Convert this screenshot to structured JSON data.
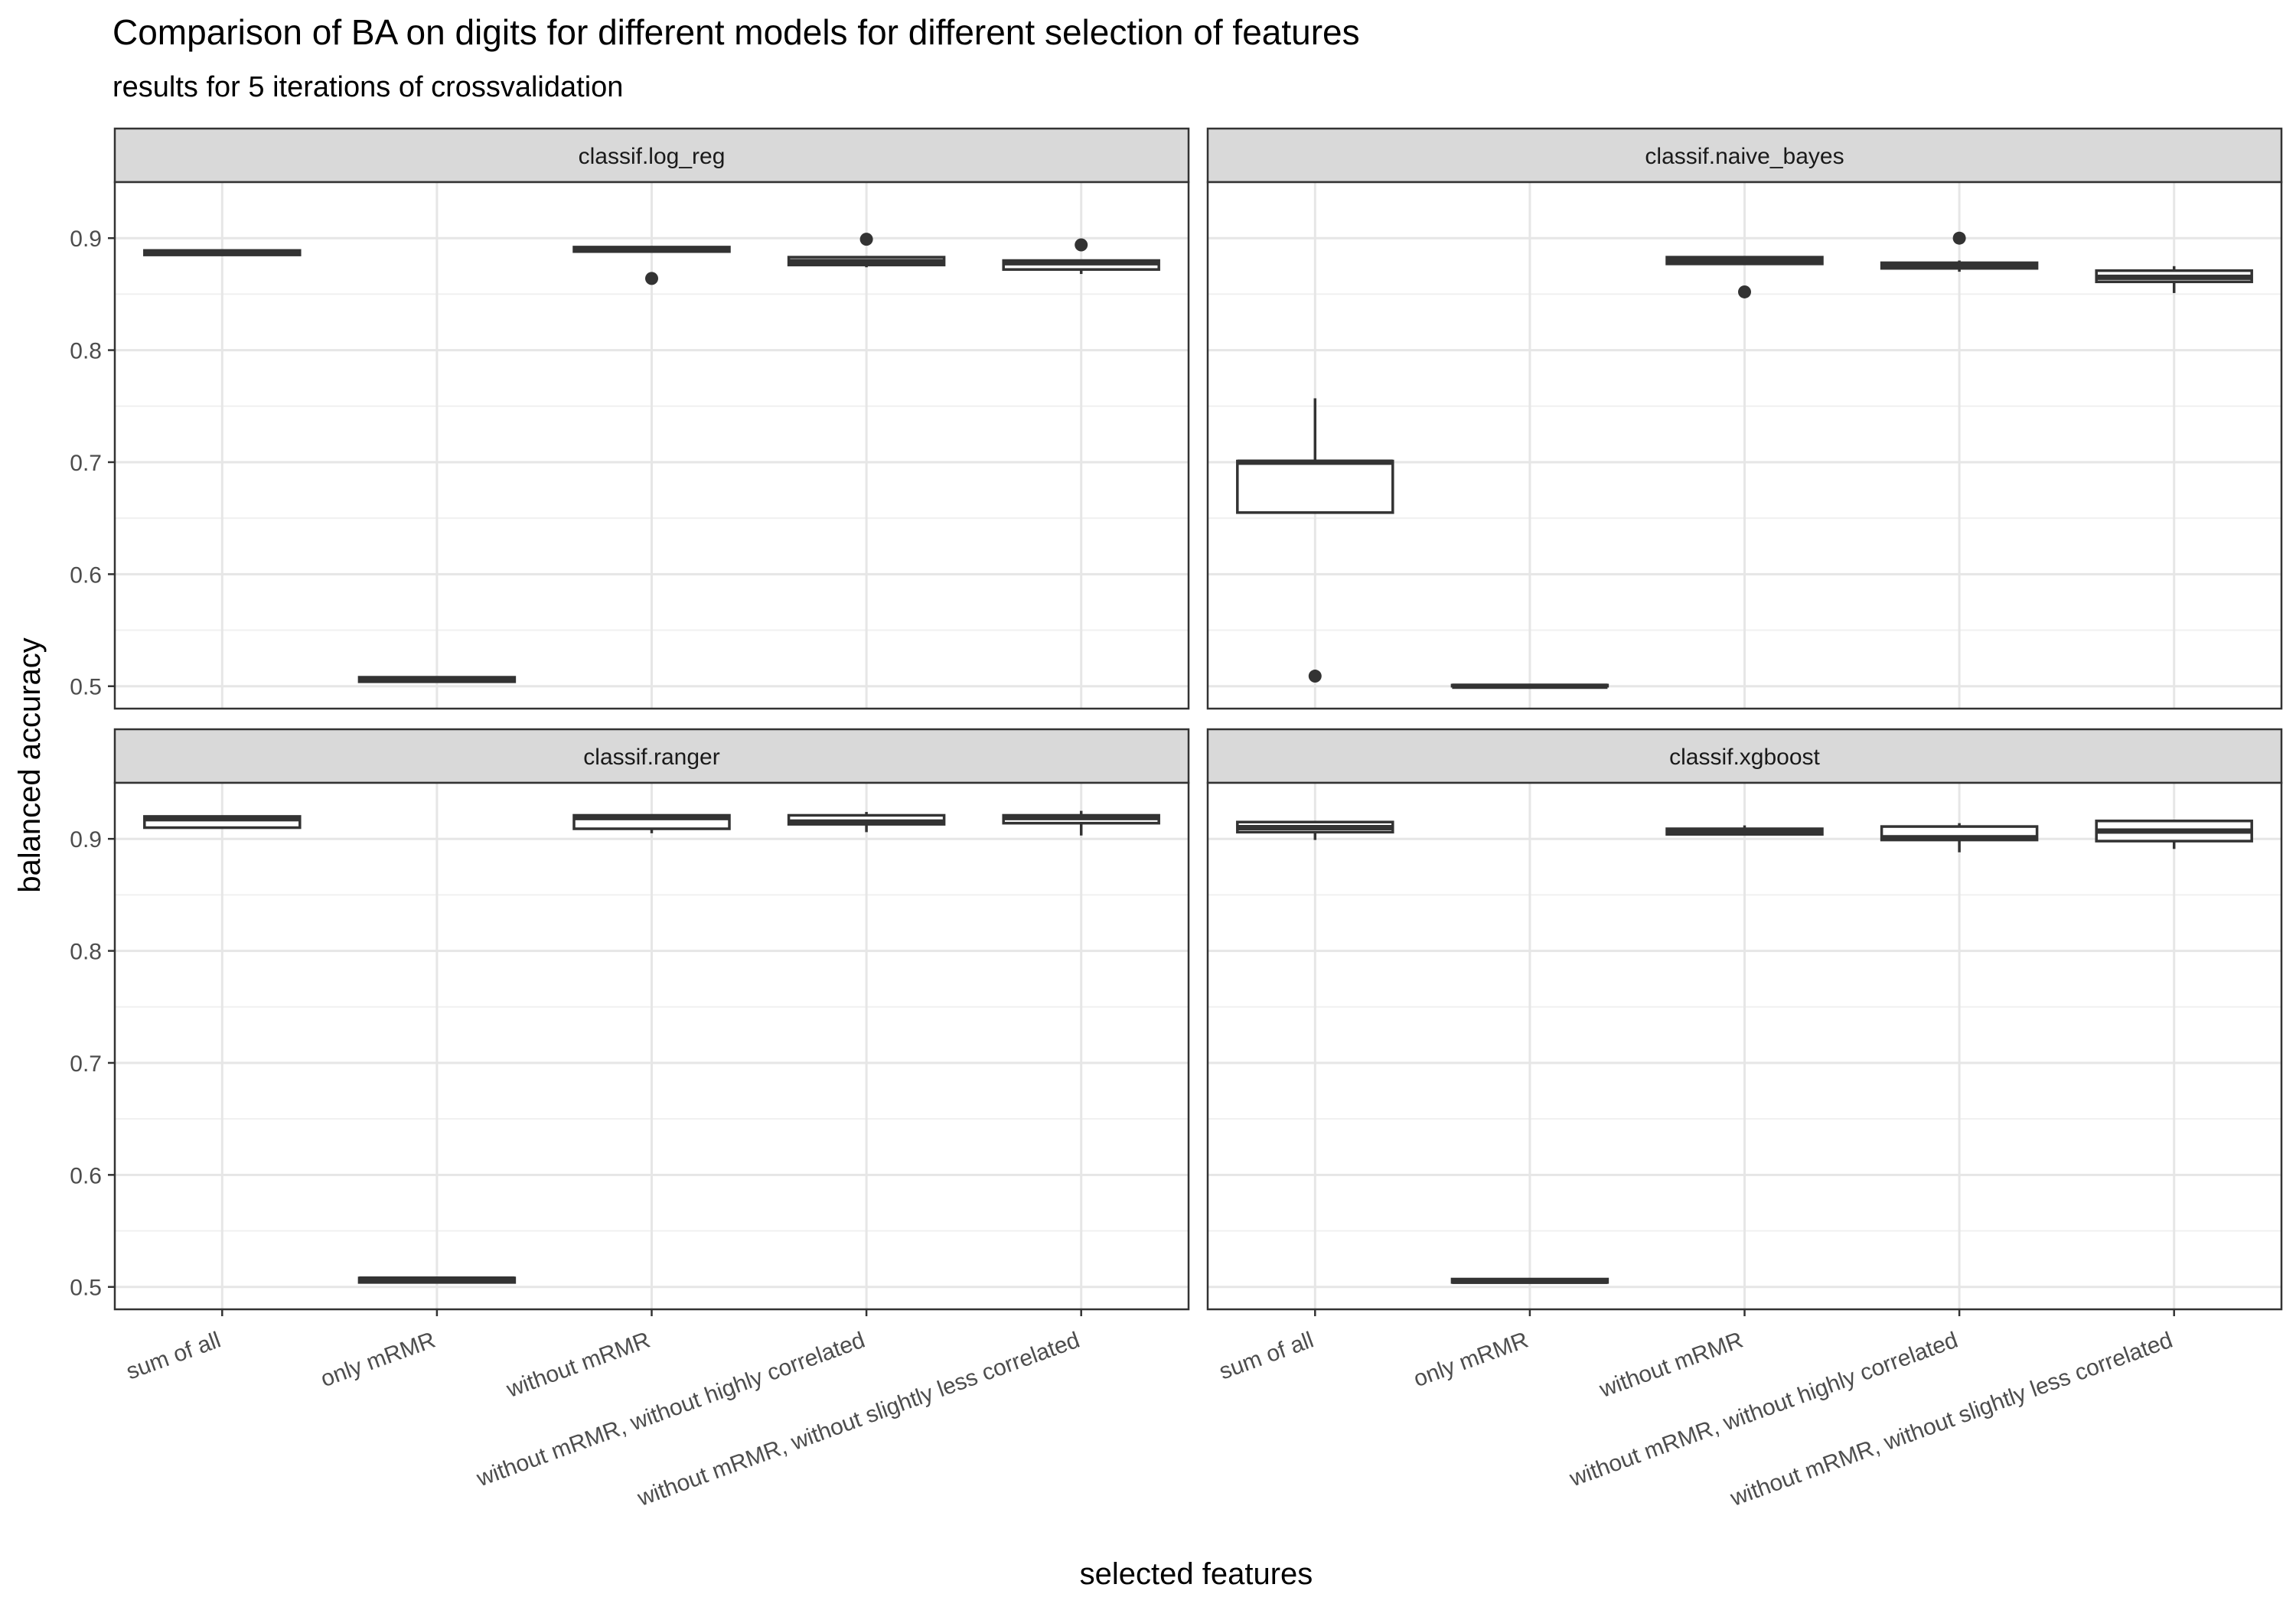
{
  "chart_data": {
    "type": "boxplot",
    "title": "Comparison of BA on digits for different models for different selection of features",
    "subtitle": "results for 5 iterations of crossvalidation",
    "xlabel": "selected features",
    "ylabel": "balanced accuracy",
    "ylim": [
      0.48,
      0.95
    ],
    "yticks": [
      0.5,
      0.6,
      0.7,
      0.8,
      0.9
    ],
    "grid": true,
    "categories": [
      "sum of all",
      "only mRMR",
      "without mRMR",
      "without mRMR, without highly correlated",
      "without mRMR, without slightly less correlated"
    ],
    "panels": [
      {
        "name": "classif.log_reg",
        "boxes": [
          {
            "category": "sum of all",
            "min": 0.885,
            "q1": 0.885,
            "median": 0.887,
            "q3": 0.889,
            "max": 0.89,
            "outliers": []
          },
          {
            "category": "only mRMR",
            "min": 0.503,
            "q1": 0.504,
            "median": 0.506,
            "q3": 0.508,
            "max": 0.509,
            "outliers": []
          },
          {
            "category": "without mRMR",
            "min": 0.887,
            "q1": 0.888,
            "median": 0.89,
            "q3": 0.892,
            "max": 0.893,
            "outliers": [
              0.864
            ]
          },
          {
            "category": "without mRMR, without highly correlated",
            "min": 0.874,
            "q1": 0.876,
            "median": 0.879,
            "q3": 0.883,
            "max": 0.884,
            "outliers": [
              0.899
            ]
          },
          {
            "category": "without mRMR, without slightly less correlated",
            "min": 0.868,
            "q1": 0.872,
            "median": 0.878,
            "q3": 0.88,
            "max": 0.881,
            "outliers": [
              0.894
            ]
          }
        ]
      },
      {
        "name": "classif.naive_bayes",
        "boxes": [
          {
            "category": "sum of all",
            "min": 0.655,
            "q1": 0.655,
            "median": 0.7,
            "q3": 0.701,
            "max": 0.757,
            "outliers": [
              0.509
            ]
          },
          {
            "category": "only mRMR",
            "min": 0.5,
            "q1": 0.5,
            "median": 0.5,
            "q3": 0.501,
            "max": 0.501,
            "outliers": []
          },
          {
            "category": "without mRMR",
            "min": 0.876,
            "q1": 0.877,
            "median": 0.88,
            "q3": 0.883,
            "max": 0.884,
            "outliers": [
              0.852
            ]
          },
          {
            "category": "without mRMR, without highly correlated",
            "min": 0.87,
            "q1": 0.873,
            "median": 0.876,
            "q3": 0.878,
            "max": 0.88,
            "outliers": [
              0.9
            ]
          },
          {
            "category": "without mRMR, without slightly less correlated",
            "min": 0.851,
            "q1": 0.861,
            "median": 0.865,
            "q3": 0.871,
            "max": 0.875,
            "outliers": []
          }
        ]
      },
      {
        "name": "classif.ranger",
        "boxes": [
          {
            "category": "sum of all",
            "min": 0.91,
            "q1": 0.91,
            "median": 0.918,
            "q3": 0.92,
            "max": 0.921,
            "outliers": []
          },
          {
            "category": "only mRMR",
            "min": 0.503,
            "q1": 0.504,
            "median": 0.507,
            "q3": 0.508,
            "max": 0.509,
            "outliers": []
          },
          {
            "category": "without mRMR",
            "min": 0.905,
            "q1": 0.909,
            "median": 0.919,
            "q3": 0.921,
            "max": 0.922,
            "outliers": []
          },
          {
            "category": "without mRMR, without highly correlated",
            "min": 0.906,
            "q1": 0.913,
            "median": 0.915,
            "q3": 0.921,
            "max": 0.924,
            "outliers": []
          },
          {
            "category": "without mRMR, without slightly less correlated",
            "min": 0.903,
            "q1": 0.914,
            "median": 0.919,
            "q3": 0.921,
            "max": 0.925,
            "outliers": []
          }
        ]
      },
      {
        "name": "classif.xgboost",
        "boxes": [
          {
            "category": "sum of all",
            "min": 0.899,
            "q1": 0.906,
            "median": 0.91,
            "q3": 0.915,
            "max": 0.916,
            "outliers": []
          },
          {
            "category": "only mRMR",
            "min": 0.503,
            "q1": 0.504,
            "median": 0.505,
            "q3": 0.507,
            "max": 0.508,
            "outliers": []
          },
          {
            "category": "without mRMR",
            "min": 0.903,
            "q1": 0.904,
            "median": 0.907,
            "q3": 0.909,
            "max": 0.912,
            "outliers": []
          },
          {
            "category": "without mRMR, without highly correlated",
            "min": 0.888,
            "q1": 0.899,
            "median": 0.901,
            "q3": 0.911,
            "max": 0.914,
            "outliers": []
          },
          {
            "category": "without mRMR, without slightly less correlated",
            "min": 0.891,
            "q1": 0.898,
            "median": 0.907,
            "q3": 0.916,
            "max": 0.917,
            "outliers": []
          }
        ]
      }
    ]
  }
}
